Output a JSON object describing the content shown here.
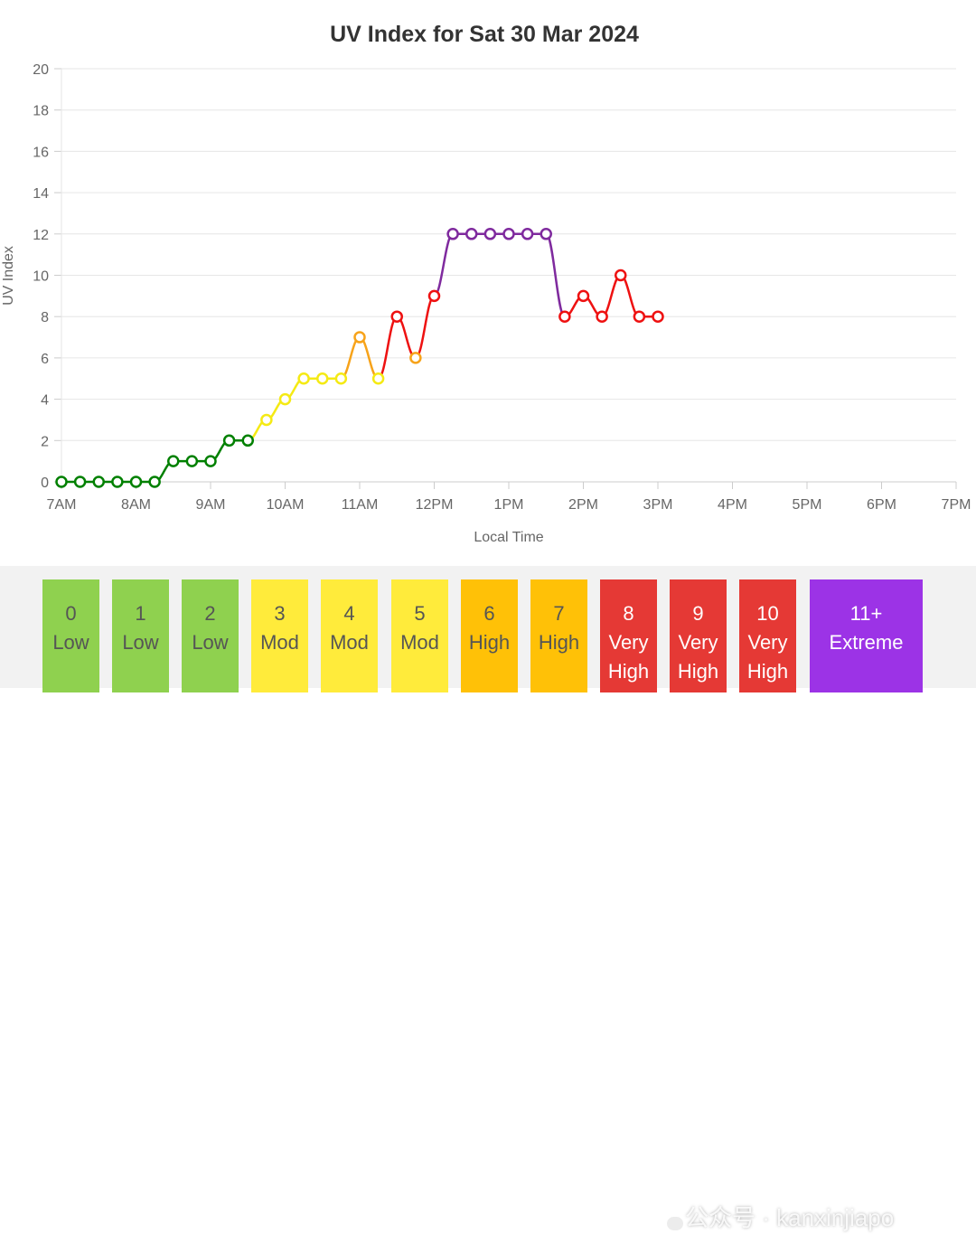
{
  "chart_data": {
    "type": "line",
    "title": "UV Index for Sat 30 Mar 2024",
    "xlabel": "Local Time",
    "ylabel": "UV Index",
    "ylim": [
      0,
      20
    ],
    "yticks": [
      0,
      2,
      4,
      6,
      8,
      10,
      12,
      14,
      16,
      18,
      20
    ],
    "xlim": [
      7,
      19
    ],
    "xticks": [
      {
        "value": 7,
        "label": "7AM"
      },
      {
        "value": 8,
        "label": "8AM"
      },
      {
        "value": 9,
        "label": "9AM"
      },
      {
        "value": 10,
        "label": "10AM"
      },
      {
        "value": 11,
        "label": "11AM"
      },
      {
        "value": 12,
        "label": "12PM"
      },
      {
        "value": 13,
        "label": "1PM"
      },
      {
        "value": 14,
        "label": "2PM"
      },
      {
        "value": 15,
        "label": "3PM"
      },
      {
        "value": 16,
        "label": "4PM"
      },
      {
        "value": 17,
        "label": "5PM"
      },
      {
        "value": 18,
        "label": "6PM"
      },
      {
        "value": 19,
        "label": "7PM"
      }
    ],
    "grid": true,
    "series": [
      {
        "name": "UV Index",
        "x_hours": [
          7.0,
          7.25,
          7.5,
          7.75,
          8.0,
          8.25,
          8.5,
          8.75,
          9.0,
          9.25,
          9.5,
          9.75,
          10.0,
          10.25,
          10.5,
          10.75,
          11.0,
          11.25,
          11.5,
          11.75,
          12.0,
          12.25,
          12.5,
          12.75,
          13.0,
          13.25,
          13.5,
          13.75,
          14.0,
          14.25,
          14.5,
          14.75,
          15.0
        ],
        "values": [
          0,
          0,
          0,
          0,
          0,
          0,
          1,
          1,
          1,
          2,
          2,
          3,
          4,
          5,
          5,
          5,
          7,
          5,
          8,
          6,
          9,
          12,
          12,
          12,
          12,
          12,
          12,
          8,
          9,
          8,
          10,
          8,
          8
        ]
      }
    ],
    "color_scale": [
      {
        "max": 2,
        "color": "#008000"
      },
      {
        "max": 5,
        "color": "#f5ea14"
      },
      {
        "max": 7,
        "color": "#f7a31a"
      },
      {
        "max": 10,
        "color": "#ee1111"
      },
      {
        "max": 99,
        "color": "#7f2a9e"
      }
    ]
  },
  "legend": [
    {
      "level": "0",
      "label": "Low",
      "color": "#8fd14f"
    },
    {
      "level": "1",
      "label": "Low",
      "color": "#8fd14f"
    },
    {
      "level": "2",
      "label": "Low",
      "color": "#8fd14f"
    },
    {
      "level": "3",
      "label": "Mod",
      "color": "#ffeb3b"
    },
    {
      "level": "4",
      "label": "Mod",
      "color": "#ffeb3b"
    },
    {
      "level": "5",
      "label": "Mod",
      "color": "#ffeb3b"
    },
    {
      "level": "6",
      "label": "High",
      "color": "#ffc107"
    },
    {
      "level": "7",
      "label": "High",
      "color": "#ffc107"
    },
    {
      "level": "8",
      "label": "Very High",
      "color": "#e53935"
    },
    {
      "level": "9",
      "label": "Very High",
      "color": "#e53935"
    },
    {
      "level": "10",
      "label": "Very High",
      "color": "#e53935"
    },
    {
      "level": "11+",
      "label": "Extreme",
      "color": "#9c33e6"
    }
  ],
  "watermark": {
    "text": "公众号 · kanxinjiapo",
    "icon": "wechat-icon"
  }
}
